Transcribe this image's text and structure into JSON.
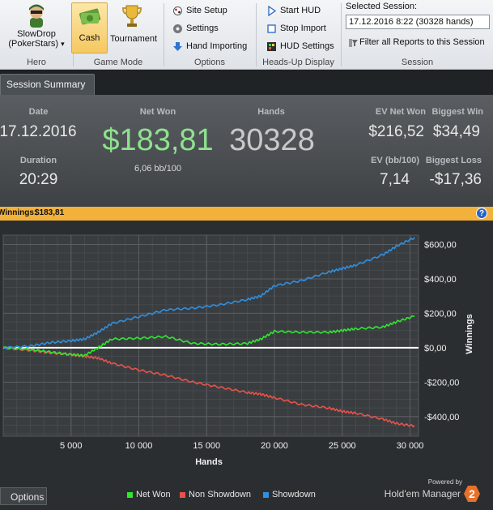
{
  "ribbon": {
    "hero": {
      "name": "SlowDrop",
      "site": "(PokerStars)",
      "group_label": "Hero",
      "dropdown_glyph": "▾"
    },
    "game_mode": {
      "cash_label": "Cash",
      "tournament_label": "Tournament",
      "group_label": "Game Mode",
      "selected": "Cash"
    },
    "options": {
      "site_setup": "Site Setup",
      "settings": "Settings",
      "hand_importing": "Hand Importing",
      "group_label": "Options"
    },
    "hud": {
      "start_hud": "Start HUD",
      "stop_import": "Stop Import",
      "hud_settings": "HUD Settings",
      "group_label": "Heads-Up Display"
    },
    "session": {
      "title": "Selected Session:",
      "value": "17.12.2016 8:22 (30328 hands)",
      "filter_label": "Filter all Reports to this Session",
      "group_label": "Session"
    }
  },
  "tabs": [
    "Session Summary"
  ],
  "summary": {
    "date_label": "Date",
    "date_value": "17.12.2016",
    "duration_label": "Duration",
    "duration_value": "20:29",
    "net_won_label": "Net Won",
    "net_won_value": "$183,81",
    "net_won_bb": "6,06 bb/100",
    "hands_label": "Hands",
    "hands_value": "30328",
    "ev_net_won_label": "EV Net Won",
    "ev_net_won_value": "$216,52",
    "ev_bb_label": "EV (bb/100)",
    "ev_bb_value": "7,14",
    "biggest_win_label": "Biggest Win",
    "biggest_win_value": "$34,49",
    "biggest_loss_label": "Biggest Loss",
    "biggest_loss_value": "-$17,36"
  },
  "winnings_bar": {
    "label": "Winnings:",
    "value": "$183,81",
    "help_glyph": "?"
  },
  "options_button": "Options",
  "brand": {
    "powered_by": "Powered by",
    "name": "Hold'em Manager",
    "version": "2"
  },
  "colors": {
    "net_won": "#2ee82e",
    "non_showdown": "#e8524a",
    "showdown": "#2f8fe0",
    "accent": "#f2b13a",
    "net_won_text": "#8ee28e"
  },
  "chart_data": {
    "type": "line",
    "xlabel": "Hands",
    "ylabel": "Winnings",
    "x_ticks": [
      5000,
      10000,
      15000,
      20000,
      25000,
      30000
    ],
    "x_tick_labels": [
      "5 000",
      "10 000",
      "15 000",
      "20 000",
      "25 000",
      "30 000"
    ],
    "y_ticks": [
      600,
      400,
      200,
      0,
      -200,
      -400
    ],
    "y_tick_labels": [
      "$600,00",
      "$400,00",
      "$200,00",
      "$0,00",
      "-$200,00",
      "-$400,00"
    ],
    "xlim": [
      0,
      30328
    ],
    "ylim": [
      -500,
      640
    ],
    "grid": true,
    "legend_placement": "bottom",
    "x": [
      0,
      2000,
      3500,
      5000,
      6000,
      7000,
      8000,
      10000,
      12000,
      14000,
      16000,
      18000,
      19000,
      20000,
      22000,
      24000,
      25000,
      26000,
      28000,
      29000,
      30328
    ],
    "series": [
      {
        "name": "Net Won",
        "values": [
          0,
          -10,
          -25,
          -40,
          -45,
          0,
          50,
          55,
          65,
          25,
          20,
          25,
          50,
          95,
          90,
          90,
          100,
          110,
          120,
          150,
          184
        ]
      },
      {
        "name": "Non Showdown",
        "values": [
          0,
          -15,
          -30,
          -40,
          -50,
          -60,
          -90,
          -130,
          -160,
          -200,
          -230,
          -260,
          -270,
          -290,
          -330,
          -350,
          -370,
          -380,
          -415,
          -440,
          -455
        ]
      },
      {
        "name": "Showdown",
        "values": [
          0,
          10,
          30,
          40,
          50,
          90,
          140,
          180,
          220,
          230,
          250,
          280,
          300,
          360,
          390,
          440,
          460,
          480,
          540,
          590,
          640
        ]
      }
    ]
  }
}
